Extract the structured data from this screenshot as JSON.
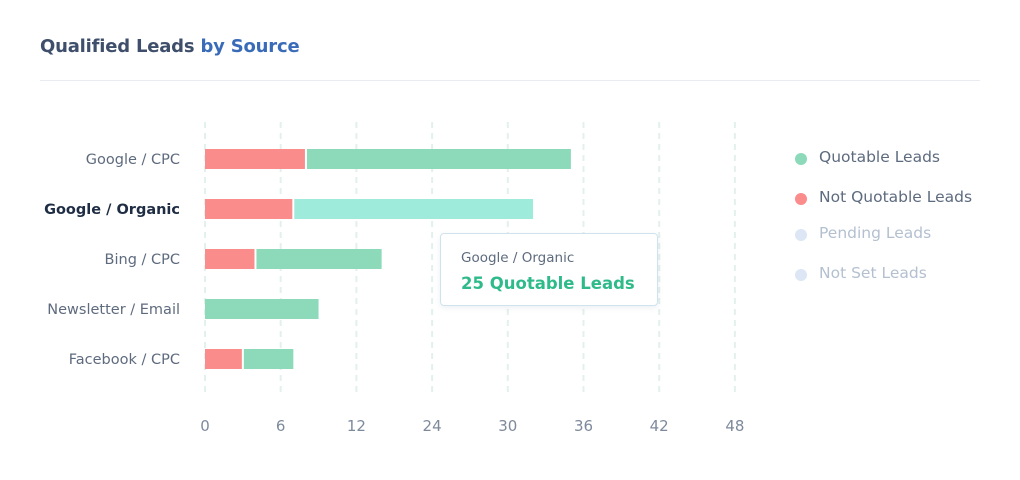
{
  "header": {
    "title_main": "Qualified Leads",
    "title_accent": "by Source"
  },
  "chart_data": {
    "type": "bar",
    "orientation": "horizontal",
    "stacked": true,
    "categories": [
      "Google / CPC",
      "Google / Organic",
      "Bing / CPC",
      "Newsletter / Email",
      "Facebook / CPC"
    ],
    "series": [
      {
        "name": "Not Quotable Leads",
        "color": "#fb8c8c",
        "values": [
          8,
          7,
          4,
          0,
          3
        ]
      },
      {
        "name": "Quotable Leads",
        "color": "#8cdaba",
        "highlight_color": "#9eeadb",
        "values": [
          27,
          25,
          12,
          9,
          4
        ]
      },
      {
        "name": "Pending Leads",
        "color": "#dce6f5",
        "values": [
          0,
          0,
          0,
          0,
          0
        ]
      },
      {
        "name": "Not Set Leads",
        "color": "#dce6f5",
        "values": [
          0,
          0,
          0,
          0,
          0
        ]
      }
    ],
    "x_ticks": [
      0,
      6,
      12,
      24,
      30,
      36,
      42,
      48
    ],
    "xlim": [
      0,
      48
    ],
    "grid": "vertical-dashed",
    "legend_position": "right",
    "highlighted_category": "Google / Organic",
    "tooltip": {
      "category": "Google / Organic",
      "value_text": "25 Quotable Leads"
    }
  },
  "legend": {
    "items": [
      {
        "label": "Quotable Leads",
        "color": "#8cdaba",
        "text_color": "#5e6b7e"
      },
      {
        "label": "Not Quotable Leads",
        "color": "#fb8c8c",
        "text_color": "#5e6b7e"
      },
      {
        "label": "Pending Leads",
        "color": "#dce6f5",
        "text_color": "#b4c0d0"
      },
      {
        "label": "Not Set Leads",
        "color": "#dce6f5",
        "text_color": "#b4c0d0"
      }
    ]
  }
}
